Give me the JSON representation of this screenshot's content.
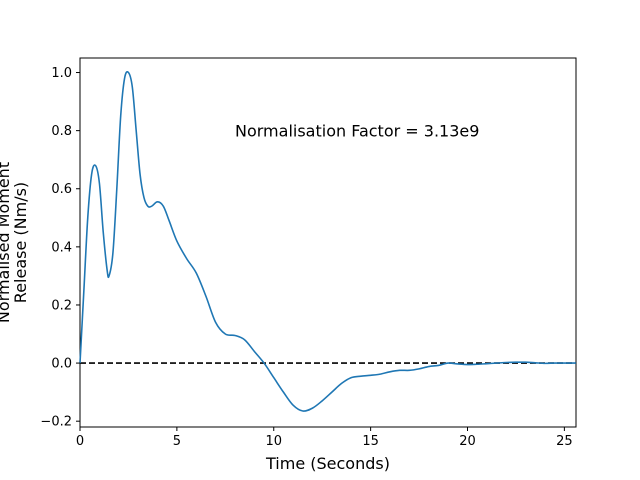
{
  "chart_data": {
    "type": "line",
    "title": "",
    "xlabel": "Time (Seconds)",
    "ylabel": "Normalised Moment Release (Nm/s)",
    "ylabel_lines": [
      "Normalised Moment",
      "Release (Nm/s)"
    ],
    "xlim": [
      0,
      25.6
    ],
    "ylim": [
      -0.22,
      1.05
    ],
    "xticks": [
      0,
      5,
      10,
      15,
      20,
      25
    ],
    "yticks": [
      -0.2,
      0.0,
      0.2,
      0.4,
      0.6,
      0.8,
      1.0
    ],
    "xtick_labels": [
      "0",
      "5",
      "10",
      "15",
      "20",
      "25"
    ],
    "ytick_labels": [
      "−0.2",
      "0.0",
      "0.2",
      "0.4",
      "0.6",
      "0.8",
      "1.0"
    ],
    "grid": false,
    "legend": "none",
    "annotation": "Normalisation Factor = 3.13e9",
    "reference_line": {
      "y": 0,
      "style": "dashed",
      "color": "#000000"
    },
    "series": [
      {
        "color": "#1f77b4",
        "x": [
          0,
          0.2,
          0.4,
          0.6,
          0.8,
          1.0,
          1.2,
          1.4,
          1.5,
          1.7,
          1.9,
          2.1,
          2.3,
          2.5,
          2.7,
          2.9,
          3.1,
          3.3,
          3.5,
          3.7,
          4.0,
          4.3,
          4.6,
          5.0,
          5.5,
          6.0,
          6.5,
          7.0,
          7.5,
          8.0,
          8.5,
          9.0,
          9.5,
          10.0,
          10.5,
          11.0,
          11.5,
          12.0,
          12.5,
          13.0,
          13.5,
          14.0,
          14.5,
          15.0,
          15.5,
          16.0,
          16.5,
          17.0,
          17.5,
          18.0,
          18.5,
          19.0,
          19.5,
          20.0,
          20.5,
          21.0,
          21.5,
          22.0,
          22.5,
          23.0,
          23.5,
          24.0,
          24.5,
          25.0,
          25.6
        ],
        "y": [
          0.0,
          0.25,
          0.5,
          0.65,
          0.68,
          0.62,
          0.45,
          0.32,
          0.3,
          0.38,
          0.6,
          0.85,
          0.98,
          1.0,
          0.95,
          0.8,
          0.65,
          0.57,
          0.54,
          0.54,
          0.555,
          0.54,
          0.49,
          0.42,
          0.36,
          0.31,
          0.23,
          0.14,
          0.1,
          0.095,
          0.08,
          0.04,
          0.0,
          -0.05,
          -0.1,
          -0.145,
          -0.165,
          -0.155,
          -0.13,
          -0.1,
          -0.07,
          -0.05,
          -0.045,
          -0.042,
          -0.038,
          -0.03,
          -0.025,
          -0.025,
          -0.02,
          -0.012,
          -0.008,
          0.0,
          -0.003,
          -0.005,
          -0.004,
          -0.002,
          0.0,
          0.002,
          0.003,
          0.003,
          0.001,
          -0.001,
          0.0,
          0.0,
          0.0
        ]
      }
    ]
  }
}
